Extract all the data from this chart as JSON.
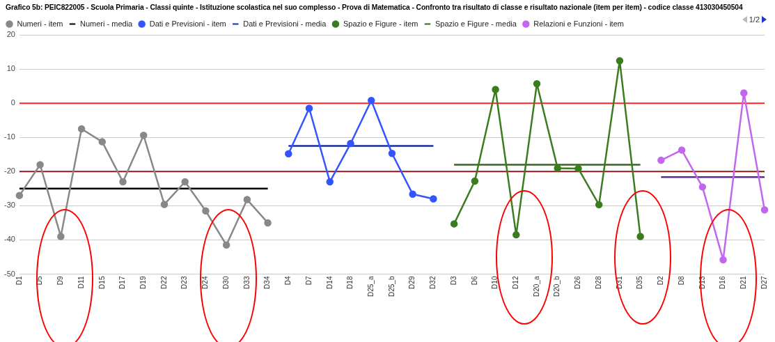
{
  "chart_data": {
    "type": "line",
    "title": "Grafico 5b: PEIC822005 - Scuola Primaria - Classi quinte - Istituzione scolastica nel suo complesso - Prova di Matematica - Confronto tra risultato di classe e risultato nazionale (item per item) - codice classe 413030450504",
    "categories": [
      "D1",
      "D5",
      "D9",
      "D11",
      "D15",
      "D17",
      "D19",
      "D22",
      "D23",
      "D24",
      "D30",
      "D33",
      "D34",
      "D4",
      "D7",
      "D14",
      "D18",
      "D25_a",
      "D25_b",
      "D29",
      "D32",
      "D3",
      "D6",
      "D10",
      "D12",
      "D20_a",
      "D20_b",
      "D26",
      "D28",
      "D31",
      "D35",
      "D2",
      "D8",
      "D13",
      "D16",
      "D21",
      "D27"
    ],
    "series": [
      {
        "name": "Numeri - item",
        "color": "#888888",
        "marker": "circle",
        "values": [
          -27,
          -18,
          -39,
          -7.5,
          -11.3,
          -23,
          -9.4,
          -29.6,
          -23,
          -31.5,
          -41.5,
          -28.2,
          -35,
          null,
          null,
          null,
          null,
          null,
          null,
          null,
          null,
          null,
          null,
          null,
          null,
          null,
          null,
          null,
          null,
          null,
          null,
          null,
          null,
          null,
          null,
          null,
          null
        ]
      },
      {
        "name": "Numeri - media",
        "color": "#000000",
        "marker": "none",
        "values": [
          -25,
          -25,
          -25,
          -25,
          -25,
          -25,
          -25,
          -25,
          -25,
          -25,
          -25,
          -25,
          -25,
          null,
          null,
          null,
          null,
          null,
          null,
          null,
          null,
          null,
          null,
          null,
          null,
          null,
          null,
          null,
          null,
          null,
          null,
          null,
          null,
          null,
          null,
          null,
          null
        ]
      },
      {
        "name": "Dati e Previsioni - item",
        "color": "#3355ff",
        "marker": "circle",
        "values": [
          null,
          null,
          null,
          null,
          null,
          null,
          null,
          null,
          null,
          null,
          null,
          null,
          null,
          -14.8,
          -1.5,
          -23,
          -11.8,
          0.8,
          -14.7,
          -26.6,
          -28,
          null,
          null,
          null,
          null,
          null,
          null,
          null,
          null,
          null,
          null,
          null,
          null,
          null,
          null,
          null,
          null
        ]
      },
      {
        "name": "Dati e Previsioni - media",
        "color": "#1a2ea0",
        "marker": "none",
        "values": [
          null,
          null,
          null,
          null,
          null,
          null,
          null,
          null,
          null,
          null,
          null,
          null,
          null,
          -12.5,
          -12.5,
          -12.5,
          -12.5,
          -12.5,
          -12.5,
          -12.5,
          -12.5,
          null,
          null,
          null,
          null,
          null,
          null,
          null,
          null,
          null,
          null,
          null,
          null,
          null,
          null,
          null,
          null
        ]
      },
      {
        "name": "Spazio e Figure - item",
        "color": "#3a7d1e",
        "marker": "circle",
        "values": [
          null,
          null,
          null,
          null,
          null,
          null,
          null,
          null,
          null,
          null,
          null,
          null,
          null,
          null,
          null,
          null,
          null,
          null,
          null,
          null,
          null,
          -35.3,
          -22.8,
          4,
          -38.5,
          5.7,
          -19,
          -19.1,
          -29.7,
          12.4,
          -39,
          null,
          null,
          null,
          null,
          null,
          null
        ]
      },
      {
        "name": "Spazio e Figure - media",
        "color": "#2f6b18",
        "marker": "none",
        "values": [
          null,
          null,
          null,
          null,
          null,
          null,
          null,
          null,
          null,
          null,
          null,
          null,
          null,
          null,
          null,
          null,
          null,
          null,
          null,
          null,
          null,
          -18,
          -18,
          -18,
          -18,
          -18,
          -18,
          -18,
          -18,
          -18,
          -18,
          null,
          null,
          null,
          null,
          null,
          null
        ]
      },
      {
        "name": "Relazioni e Funzioni - item",
        "color": "#c266f0",
        "marker": "circle",
        "values": [
          null,
          null,
          null,
          null,
          null,
          null,
          null,
          null,
          null,
          null,
          null,
          null,
          null,
          null,
          null,
          null,
          null,
          null,
          null,
          null,
          null,
          null,
          null,
          null,
          null,
          null,
          null,
          null,
          null,
          null,
          null,
          -16.7,
          -13.7,
          -24.5,
          -45.8,
          3,
          -31.2
        ]
      },
      {
        "color": "#5b2d91",
        "marker": "none",
        "values": [
          null,
          null,
          null,
          null,
          null,
          null,
          null,
          null,
          null,
          null,
          null,
          null,
          null,
          null,
          null,
          null,
          null,
          null,
          null,
          null,
          null,
          null,
          null,
          null,
          null,
          null,
          null,
          null,
          null,
          null,
          null,
          -21.6,
          -21.6,
          -21.6,
          -21.6,
          -21.6,
          -21.6
        ]
      }
    ],
    "ylim": [
      -50,
      20
    ],
    "yticks": [
      -50,
      -40,
      -30,
      -20,
      -10,
      0,
      10,
      20
    ],
    "grid": "y",
    "legend": "top",
    "ref_lines": [
      {
        "axis": "y",
        "value": 0,
        "color": "#ff2222"
      },
      {
        "axis": "y",
        "value": -20,
        "color": "#8b1a1a"
      }
    ],
    "annotations": [
      "1/2"
    ]
  }
}
